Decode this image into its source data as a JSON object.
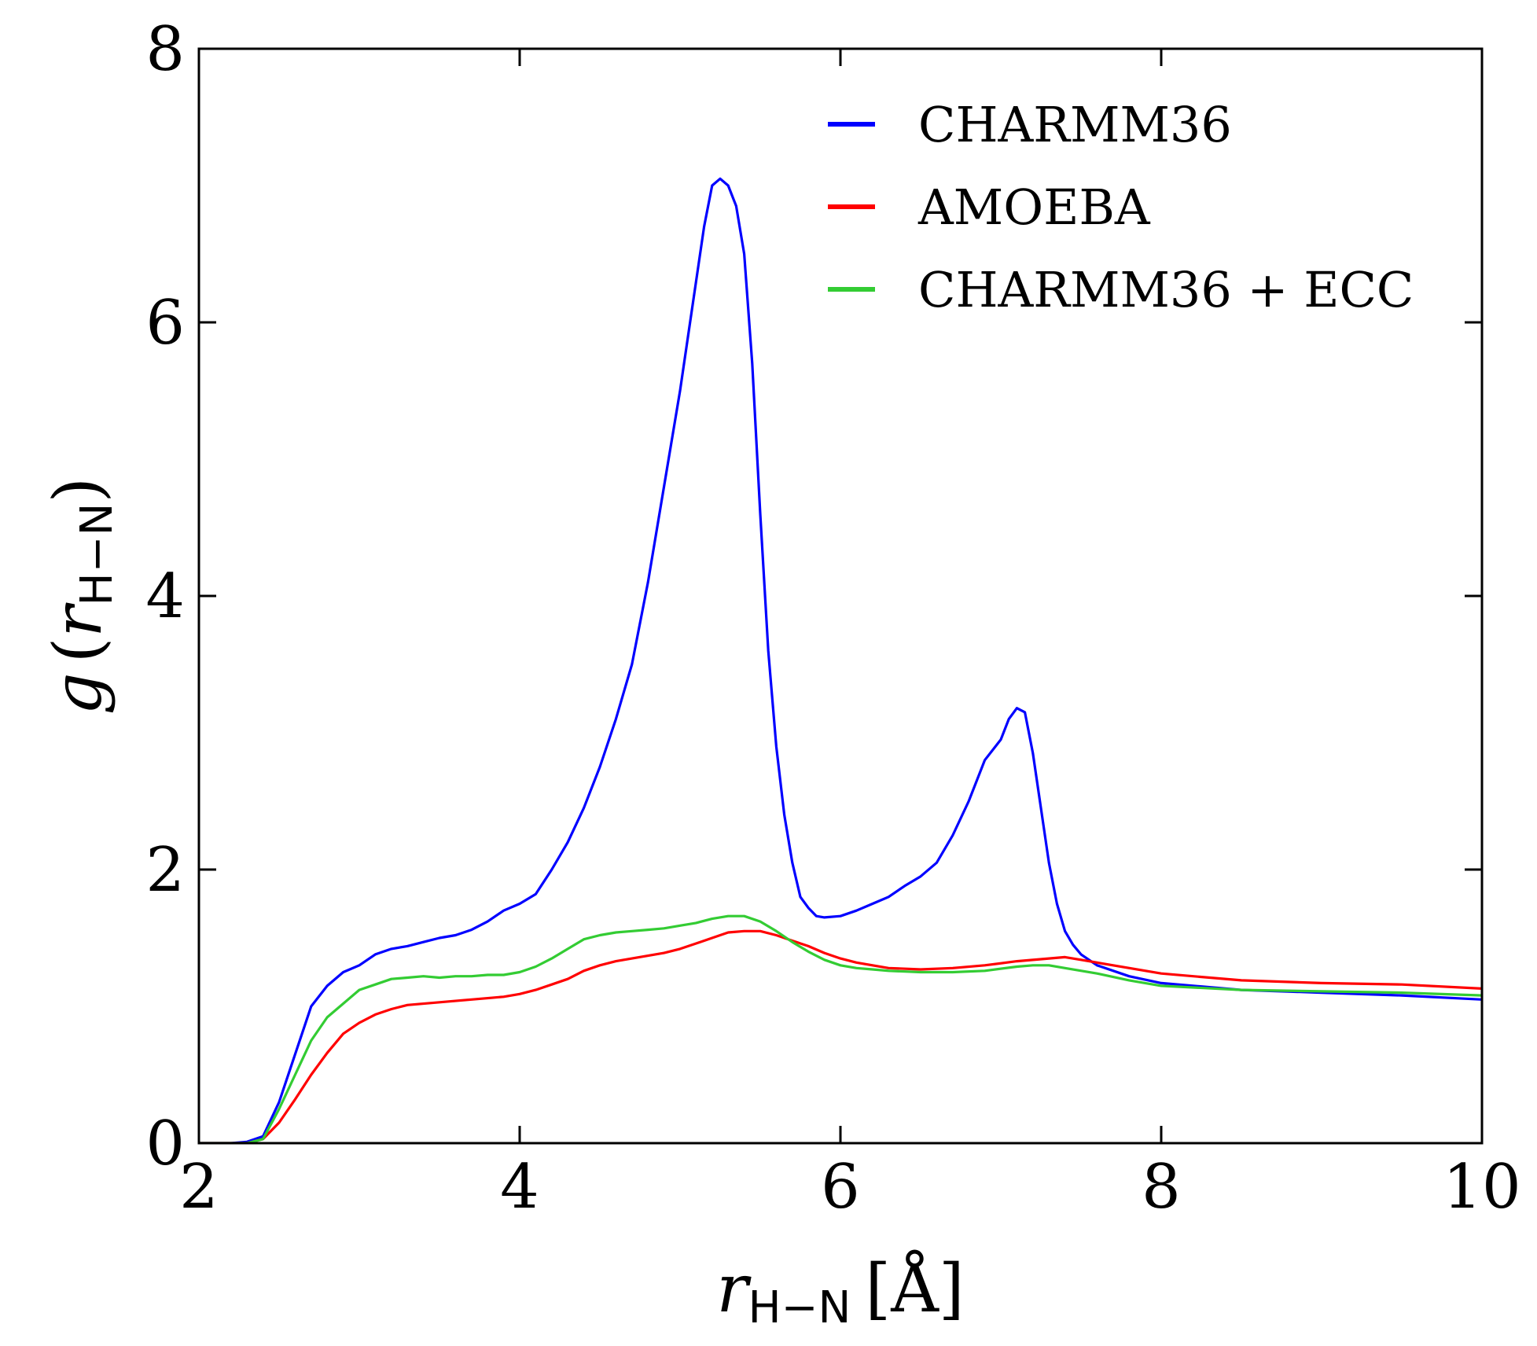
{
  "chart_data": {
    "type": "line",
    "xlabel": {
      "var": "r",
      "sub": "H−N",
      "unit": "[Å]"
    },
    "ylabel": {
      "func": "g",
      "var": "r",
      "sub": "H−N"
    },
    "xlim": [
      2,
      10
    ],
    "ylim": [
      0,
      8
    ],
    "x_ticks": [
      2,
      4,
      6,
      8,
      10
    ],
    "y_ticks": [
      0,
      2,
      4,
      6,
      8
    ],
    "x_tick_labels": [
      "2",
      "4",
      "6",
      "8",
      "10"
    ],
    "y_tick_labels": [
      "0",
      "2",
      "4",
      "6",
      "8"
    ],
    "grid": false,
    "legend_position": "top-right",
    "series": [
      {
        "name": "CHARMM36",
        "color": "#0000ff",
        "x": [
          2.0,
          2.2,
          2.3,
          2.4,
          2.5,
          2.6,
          2.7,
          2.8,
          2.9,
          3.0,
          3.1,
          3.2,
          3.3,
          3.4,
          3.5,
          3.6,
          3.7,
          3.8,
          3.9,
          4.0,
          4.1,
          4.2,
          4.3,
          4.4,
          4.5,
          4.6,
          4.7,
          4.8,
          4.9,
          5.0,
          5.05,
          5.1,
          5.15,
          5.2,
          5.25,
          5.3,
          5.35,
          5.4,
          5.45,
          5.5,
          5.55,
          5.6,
          5.65,
          5.7,
          5.75,
          5.8,
          5.85,
          5.9,
          6.0,
          6.1,
          6.2,
          6.3,
          6.4,
          6.5,
          6.6,
          6.7,
          6.8,
          6.9,
          7.0,
          7.05,
          7.1,
          7.15,
          7.2,
          7.25,
          7.3,
          7.35,
          7.4,
          7.45,
          7.5,
          7.6,
          7.8,
          8.0,
          8.5,
          9.0,
          9.5,
          10.0
        ],
        "values": [
          0.0,
          0.0,
          0.01,
          0.05,
          0.3,
          0.65,
          1.0,
          1.15,
          1.25,
          1.3,
          1.38,
          1.42,
          1.44,
          1.47,
          1.5,
          1.52,
          1.56,
          1.62,
          1.7,
          1.75,
          1.82,
          2.0,
          2.2,
          2.45,
          2.75,
          3.1,
          3.5,
          4.1,
          4.8,
          5.5,
          5.9,
          6.3,
          6.7,
          7.0,
          7.05,
          7.0,
          6.85,
          6.5,
          5.7,
          4.6,
          3.6,
          2.9,
          2.4,
          2.05,
          1.8,
          1.72,
          1.66,
          1.65,
          1.66,
          1.7,
          1.75,
          1.8,
          1.88,
          1.95,
          2.05,
          2.25,
          2.5,
          2.8,
          2.95,
          3.1,
          3.18,
          3.15,
          2.85,
          2.45,
          2.05,
          1.75,
          1.55,
          1.45,
          1.38,
          1.3,
          1.22,
          1.17,
          1.12,
          1.1,
          1.08,
          1.05
        ]
      },
      {
        "name": "AMOEBA",
        "color": "#ff0000",
        "x": [
          2.0,
          2.3,
          2.4,
          2.5,
          2.6,
          2.7,
          2.8,
          2.9,
          3.0,
          3.1,
          3.2,
          3.3,
          3.5,
          3.7,
          3.9,
          4.0,
          4.1,
          4.2,
          4.3,
          4.4,
          4.5,
          4.6,
          4.7,
          4.8,
          4.9,
          5.0,
          5.1,
          5.2,
          5.3,
          5.4,
          5.5,
          5.6,
          5.7,
          5.8,
          5.9,
          6.0,
          6.1,
          6.2,
          6.3,
          6.5,
          6.7,
          6.9,
          7.1,
          7.3,
          7.4,
          7.5,
          7.7,
          8.0,
          8.5,
          9.0,
          9.5,
          10.0
        ],
        "values": [
          0.0,
          0.0,
          0.03,
          0.15,
          0.32,
          0.5,
          0.66,
          0.8,
          0.88,
          0.94,
          0.98,
          1.01,
          1.03,
          1.05,
          1.07,
          1.09,
          1.12,
          1.16,
          1.2,
          1.26,
          1.3,
          1.33,
          1.35,
          1.37,
          1.39,
          1.42,
          1.46,
          1.5,
          1.54,
          1.55,
          1.55,
          1.52,
          1.48,
          1.44,
          1.39,
          1.35,
          1.32,
          1.3,
          1.28,
          1.27,
          1.28,
          1.3,
          1.33,
          1.35,
          1.36,
          1.34,
          1.3,
          1.24,
          1.19,
          1.17,
          1.16,
          1.13
        ]
      },
      {
        "name": "CHARMM36 + ECC",
        "color": "#33cc33",
        "x": [
          2.0,
          2.3,
          2.4,
          2.5,
          2.6,
          2.7,
          2.8,
          2.9,
          3.0,
          3.1,
          3.2,
          3.3,
          3.4,
          3.5,
          3.6,
          3.7,
          3.8,
          3.9,
          4.0,
          4.1,
          4.2,
          4.3,
          4.4,
          4.5,
          4.6,
          4.7,
          4.8,
          4.9,
          5.0,
          5.1,
          5.2,
          5.3,
          5.4,
          5.5,
          5.6,
          5.7,
          5.8,
          5.9,
          6.0,
          6.1,
          6.2,
          6.3,
          6.5,
          6.7,
          6.9,
          7.1,
          7.2,
          7.3,
          7.4,
          7.6,
          7.8,
          8.0,
          8.5,
          9.0,
          9.5,
          10.0
        ],
        "values": [
          0.0,
          0.0,
          0.03,
          0.25,
          0.5,
          0.75,
          0.92,
          1.02,
          1.12,
          1.16,
          1.2,
          1.21,
          1.22,
          1.21,
          1.22,
          1.22,
          1.23,
          1.23,
          1.25,
          1.29,
          1.35,
          1.42,
          1.49,
          1.52,
          1.54,
          1.55,
          1.56,
          1.57,
          1.59,
          1.61,
          1.64,
          1.66,
          1.66,
          1.62,
          1.55,
          1.47,
          1.4,
          1.34,
          1.3,
          1.28,
          1.27,
          1.26,
          1.25,
          1.25,
          1.26,
          1.29,
          1.3,
          1.3,
          1.28,
          1.24,
          1.19,
          1.15,
          1.12,
          1.11,
          1.1,
          1.08
        ]
      }
    ]
  }
}
